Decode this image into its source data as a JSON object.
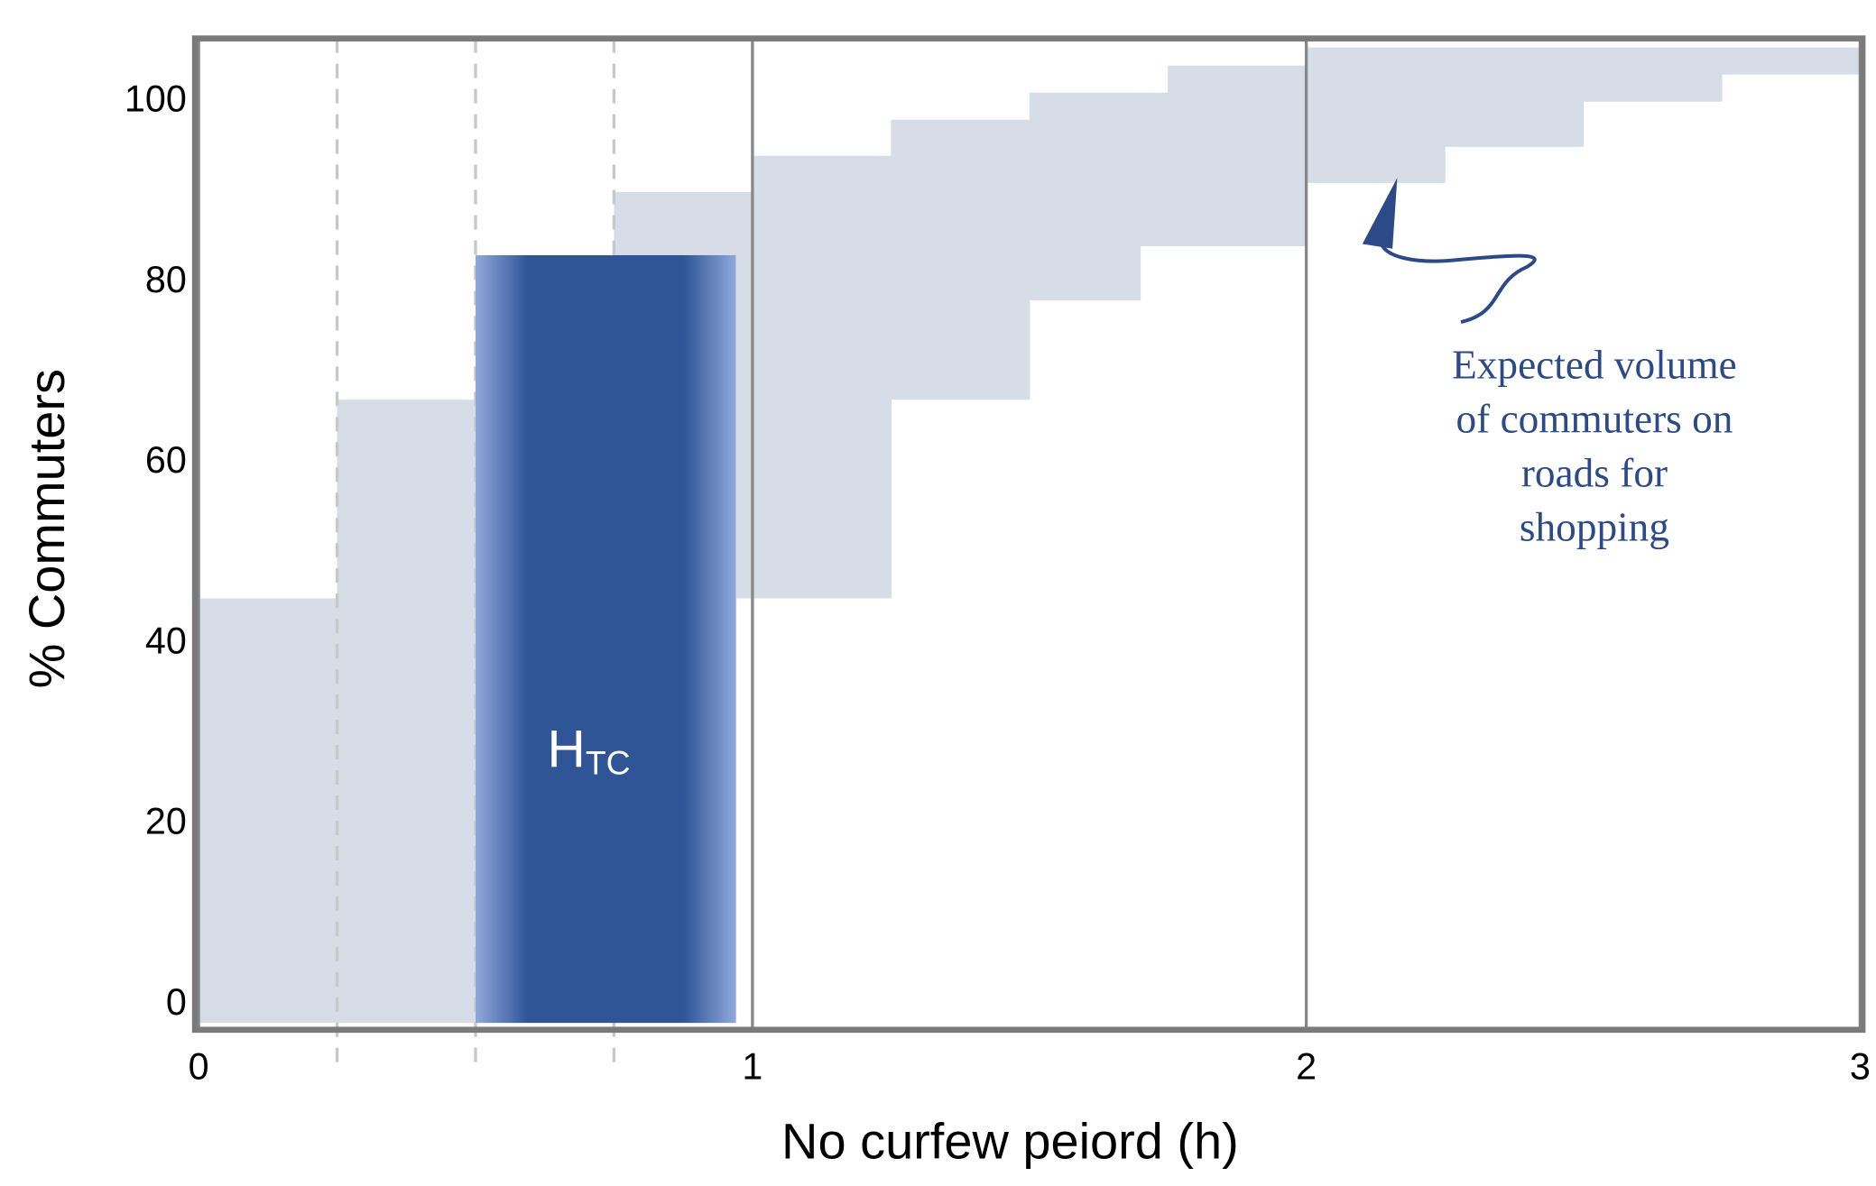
{
  "chart_data": {
    "type": "step-band",
    "x_label": "No curfew peiord (h)",
    "y_label": "% Commuters",
    "xlim": [
      0,
      3
    ],
    "ylim": [
      -2.5,
      107
    ],
    "xticks": [
      0,
      1,
      2,
      3
    ],
    "yticks": [
      0,
      20,
      40,
      60,
      80,
      100
    ],
    "grid": true,
    "band_color": "#d6dde6",
    "upper": {
      "x": [
        0,
        0.25,
        0.5,
        0.75,
        1.0,
        1.25,
        1.5,
        1.75,
        2.0,
        3.0
      ],
      "values": [
        45,
        67,
        83,
        90,
        94,
        98,
        101,
        104,
        106
      ]
    },
    "lower": {
      "x": [
        0,
        0.97,
        1.25,
        1.5,
        1.7,
        2.0,
        2.25,
        2.5,
        2.75,
        3.0
      ],
      "values": [
        -2,
        45,
        67,
        78,
        84,
        91,
        95,
        100,
        103
      ]
    },
    "dashed_lines": [
      0.25,
      0.5,
      0.75
    ],
    "highlight": {
      "label": "H",
      "label_sub": "TC",
      "x": [
        0.5,
        0.97
      ],
      "y": [
        -2,
        83
      ],
      "color": "#2f5596",
      "edge_color": "#8fa9dc"
    },
    "annotation": [
      "Expected volume",
      "of commuters on",
      "roads for",
      "shopping"
    ]
  }
}
